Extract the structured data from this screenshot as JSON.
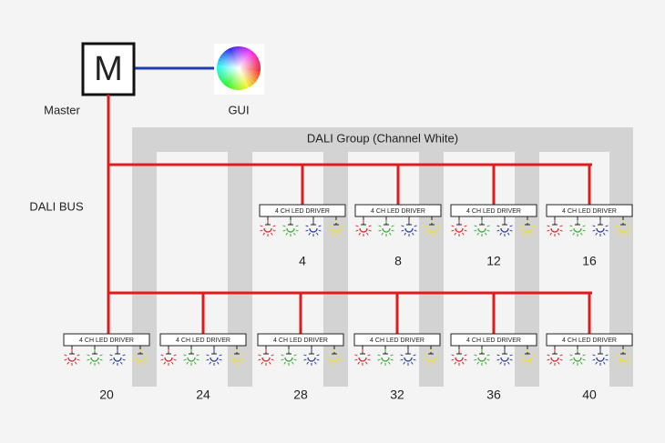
{
  "master": {
    "symbol": "M",
    "label": "Master"
  },
  "gui": {
    "label": "GUI"
  },
  "group": {
    "label": "DALI Group (Channel White)"
  },
  "bus": {
    "label": "DALI BUS"
  },
  "drivers": [
    {
      "label": "4 CH LED DRIVER",
      "number": "4"
    },
    {
      "label": "4 CH LED DRIVER",
      "number": "8"
    },
    {
      "label": "4 CH LED DRIVER",
      "number": "12"
    },
    {
      "label": "4 CH LED DRIVER",
      "number": "16"
    },
    {
      "label": "4 CH LED DRIVER",
      "number": "20"
    },
    {
      "label": "4 CH LED DRIVER",
      "number": "24"
    },
    {
      "label": "4 CH LED DRIVER",
      "number": "28"
    },
    {
      "label": "4 CH LED DRIVER",
      "number": "32"
    },
    {
      "label": "4 CH LED DRIVER",
      "number": "36"
    },
    {
      "label": "4 CH LED DRIVER",
      "number": "40"
    }
  ]
}
